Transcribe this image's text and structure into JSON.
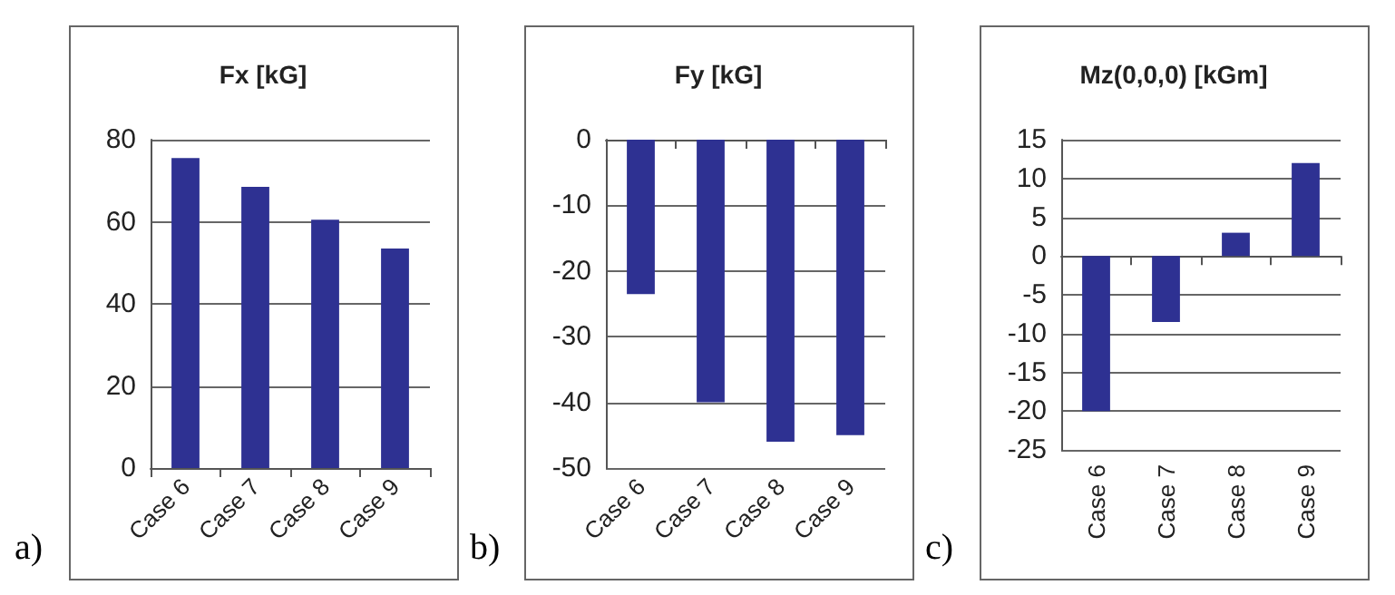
{
  "chart_data": [
    {
      "type": "bar",
      "title": "Fx [kG]",
      "categories": [
        "Case 6",
        "Case 7",
        "Case 8",
        "Case 9"
      ],
      "values": [
        75.5,
        68.5,
        60.5,
        53.5
      ],
      "color": "#2e3192",
      "ylim": [
        0,
        80
      ],
      "yticks": [
        0,
        20,
        40,
        60,
        80
      ],
      "grid": "y",
      "annotations": [
        "a)"
      ]
    },
    {
      "type": "bar",
      "title": "Fy [kG]",
      "categories": [
        "Case 6",
        "Case 7",
        "Case 8",
        "Case 9"
      ],
      "values": [
        -23.5,
        -40,
        -46,
        -45
      ],
      "color": "#2e3192",
      "ylim": [
        -50,
        0
      ],
      "yticks": [
        -50,
        -40,
        -30,
        -20,
        -10,
        0
      ],
      "grid": "y",
      "annotations": [
        "b)"
      ]
    },
    {
      "type": "bar",
      "title": "Mz(0,0,0) [kGm]",
      "categories": [
        "Case 6",
        "Case 7",
        "Case 8",
        "Case 9"
      ],
      "values": [
        -20,
        -8.5,
        3,
        12
      ],
      "color": "#2e3192",
      "ylim": [
        -25,
        15
      ],
      "yticks": [
        -25,
        -20,
        -15,
        -10,
        -5,
        0,
        5,
        10,
        15
      ],
      "grid": "y",
      "annotations": [
        "c)"
      ]
    }
  ]
}
